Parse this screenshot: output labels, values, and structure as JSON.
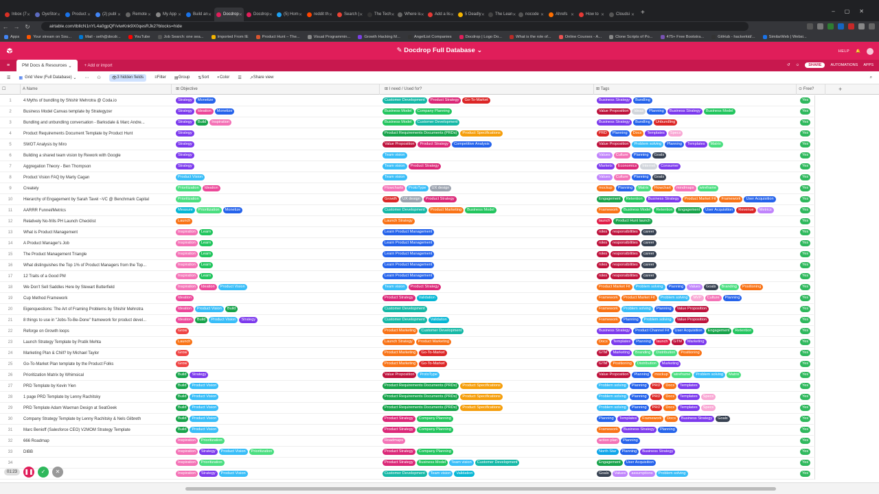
{
  "browser": {
    "tabs": [
      {
        "label": "Inbox (7",
        "color": "#d93025"
      },
      {
        "label": "OyeStor",
        "color": "#5c6bc0"
      },
      {
        "label": "Product",
        "color": "#1a73e8"
      },
      {
        "label": "(2) publ",
        "color": "#4285f4"
      },
      {
        "label": "Remote",
        "color": "#666"
      },
      {
        "label": "My App",
        "color": "#888"
      },
      {
        "label": "Build an",
        "color": "#1a73e8"
      },
      {
        "label": "Docdrop",
        "color": "#e01e5a",
        "active": true
      },
      {
        "label": "Docdrop",
        "color": "#e01e5a"
      },
      {
        "label": "(5) Hom",
        "color": "#1da1f2"
      },
      {
        "label": "reddit th",
        "color": "#ff4500"
      },
      {
        "label": "Search |",
        "color": "#ea4335"
      },
      {
        "label": "The Tech",
        "color": "#333"
      },
      {
        "label": "Where is",
        "color": "#666"
      },
      {
        "label": "Add a lis",
        "color": "#e53935"
      },
      {
        "label": "5 Deadly",
        "color": "#f4b400"
      },
      {
        "label": "The Lean",
        "color": "#444"
      },
      {
        "label": "nocode",
        "color": "#555"
      },
      {
        "label": "Ahrefs",
        "color": "#ff6f00"
      },
      {
        "label": "How to",
        "color": "#e53935"
      },
      {
        "label": "Cloudsi",
        "color": "#555"
      }
    ],
    "url": "airtable.com/tbllcN1nYL4a0gpQF/viwKnk9X0qesRJk2?blocks=hide",
    "bookmarks": [
      {
        "label": "Apps",
        "color": "#4285f4"
      },
      {
        "label": "Your stream on Sou...",
        "color": "#ff5500"
      },
      {
        "label": "Mail - seth@docdr...",
        "color": "#0078d4"
      },
      {
        "label": "YouTube",
        "color": "#ff0000"
      },
      {
        "label": "Job Search: one sea...",
        "color": "#555"
      },
      {
        "label": "Imported From IE",
        "color": "#f4b400"
      },
      {
        "label": "Product Hunt – The...",
        "color": "#da552f"
      },
      {
        "label": "Visual Programmin...",
        "color": "#888"
      },
      {
        "label": "Growth Hacking M...",
        "color": "#7b3fe4"
      },
      {
        "label": "AngelList Companies",
        "color": "#333"
      },
      {
        "label": "Docdrop | Logo Do...",
        "color": "#e01e5a"
      },
      {
        "label": "What is the role of...",
        "color": "#b92b27"
      },
      {
        "label": "Online Courses - A...",
        "color": "#ec5252"
      },
      {
        "label": "Clone Scripts of Po...",
        "color": "#888"
      },
      {
        "label": "475+ Free Bootstra...",
        "color": "#7952b3"
      },
      {
        "label": "GitHub - hackerkid/...",
        "color": "#333"
      },
      {
        "label": "SimilarWeb | Websi...",
        "color": "#1a73e8"
      }
    ]
  },
  "app": {
    "base_title": "Docdrop Full Database",
    "help_label": "HELP",
    "table_tab": "PM Docs & Resources",
    "add_import": "Add or import",
    "share_label": "SHARE",
    "automations_label": "AUTOMATIONS",
    "apps_label": "APPS"
  },
  "viewbar": {
    "view_name": "Grid View (Full Database)",
    "hidden_fields": "3 hidden fields",
    "filter": "Filter",
    "group": "Group",
    "sort": "Sort",
    "color": "Color",
    "share_view": "Share view"
  },
  "columns": {
    "name": "Name",
    "objective": "Objective",
    "need": "I need / Used for?",
    "tags": "Tags",
    "free": "Free?"
  },
  "colors": {
    "Strategy": "#7c3aed",
    "Monetize": "#2563eb",
    "Ideation": "#ec4899",
    "Build": "#16a34a",
    "Inspiration": "#f472b6",
    "Product Vision": "#38bdf8",
    "Prioritization": "#4ade80",
    "Measure": "#06b6d4",
    "Launch": "#f97316",
    "Learn": "#22c55e",
    "Grow": "#ef4444",
    "Roadmap": "#f97316",
    "Customer Development": "#14b8a6",
    "Product Strategy": "#db2777",
    "Go-To-Market": "#dc2626",
    "Business Model": "#22c55e",
    "Company Planning": "#22c55e",
    "Product Requirements Documents (PRDs)": "#16a34a",
    "Product Specifications": "#f59e0b",
    "Value Proposition": "#be123c",
    "Competitive Analysis": "#2563eb",
    "Team vision": "#38bdf8",
    "Flowcharts": "#f472b6",
    "ProtoType": "#38bdf8",
    "UX design": "#9ca3af",
    "Growth": "#dc2626",
    "Product Marketing": "#f97316",
    "Launch Strategy": "#f97316",
    "Learn Product Management": "#2563eb",
    "Validation": "#06b6d4",
    "Roadmaps": "#f472b6",
    "Business Strategy": "#7c3aed",
    "Bundling": "#2563eb",
    "Unbundling": "#dc2626",
    "PRD": "#dc2626",
    "Planning": "#2563eb",
    "Docs": "#f97316",
    "Templates": "#7c3aed",
    "Specs": "#f9a8d4",
    "Problem solving": "#38bdf8",
    "Matrix": "#4ade80",
    "Values": "#c084fc",
    "Culture": "#f472b6",
    "Goals": "#374151",
    "Markets": "#7c3aed",
    "Economics": "#db2777",
    "Internet": "#d1d5db",
    "Consumer": "#7c3aed",
    "mockup": "#f97316",
    "Flowchart": "#f97316",
    "mindmaps": "#f472b6",
    "wireframe": "#4ade80",
    "Engagement": "#16a34a",
    "Retention": "#22c55e",
    "Product Market Fit": "#f97316",
    "Framework": "#f97316",
    "User Acquisition": "#2563eb",
    "Revenue": "#dc2626",
    "Metrics": "#c084fc",
    "launch": "#e11d48",
    "Product Hunt launch": "#16a34a",
    "roles": "#be123c",
    "responsibilities": "#be123c",
    "career": "#374151",
    "Branding": "#4ade80",
    "Positioning": "#f97316",
    "MVP": "#f9a8d4",
    "GTM": "#be123c",
    "Marketing": "#7c3aed",
    "Distribution": "#4ade80",
    "Product Channel Fit": "#2563eb",
    "action plan": "#f472b6",
    "North Star": "#0ea5e9",
    "Ideas": "#d1d5db",
    "assumptions": "#c084fc",
    "Yes": "#2eb85c"
  },
  "records": [
    {
      "n": "1",
      "name": "4 Myths of bundling by Shishir Mehrotra @ Coda.io",
      "obj": [
        "Strategy",
        "Monetize"
      ],
      "need": [
        "Customer Development",
        "Product Strategy",
        "Go-To-Market"
      ],
      "tags": [
        "Business Strategy",
        "Bundling"
      ],
      "free": "Yes"
    },
    {
      "n": "2",
      "name": "Business Model Canvas template by Strategyzer",
      "obj": [
        "Strategy",
        "Ideation",
        "Monetize"
      ],
      "need": [
        "Business Model",
        "Company Planning"
      ],
      "tags": [
        "Value Proposition",
        "Ideas",
        "Planning",
        "Business Strategy",
        "Business Model"
      ],
      "free": "Yes"
    },
    {
      "n": "3",
      "name": "Bundling and unbundling conversation - Barksdale & Marc Andre...",
      "obj": [
        "Strategy",
        "Build",
        "Inspiration"
      ],
      "need": [
        "Business Model",
        "Customer Development"
      ],
      "tags": [
        "Business Strategy",
        "Bundling",
        "Unbundling"
      ],
      "free": "Yes"
    },
    {
      "n": "4",
      "name": "Product Requirements Document Template by Product Hunt",
      "obj": [
        "Strategy"
      ],
      "need": [
        "Product Requirements Documents (PRDs)",
        "Product Specifications"
      ],
      "tags": [
        "PRD",
        "Planning",
        "Docs",
        "Templates",
        "Specs"
      ],
      "free": "Yes"
    },
    {
      "n": "5",
      "name": "SWOT Analysis by Miro",
      "obj": [
        "Strategy"
      ],
      "need": [
        "Value Proposition",
        "Product Strategy",
        "Competitive Analysis"
      ],
      "tags": [
        "Value Proposition",
        "Problem solving",
        "Planning",
        "Templates",
        "Matrix"
      ],
      "free": "Yes"
    },
    {
      "n": "6",
      "name": "Building a shared team vision by Rework with Google",
      "obj": [
        "Strategy"
      ],
      "need": [
        "Team vision"
      ],
      "tags": [
        "Values",
        "Culture",
        "Planning",
        "Goals"
      ],
      "free": "Yes"
    },
    {
      "n": "7",
      "name": "Aggregation Theory - Ben Thompson",
      "obj": [
        "Strategy"
      ],
      "need": [
        "Team vision",
        "Product Strategy"
      ],
      "tags": [
        "Markets",
        "Economics",
        "Internet",
        "Consumer"
      ],
      "free": "Yes"
    },
    {
      "n": "8",
      "name": "Product Vision FAQ by Marty Cagan",
      "obj": [
        "Product Vision"
      ],
      "need": [
        "Team vision"
      ],
      "tags": [
        "Values",
        "Culture",
        "Planning",
        "Goals"
      ],
      "free": "Yes"
    },
    {
      "n": "9",
      "name": "Creately",
      "obj": [
        "Prioritization",
        "Ideation"
      ],
      "need": [
        "Flowcharts",
        "ProtoType",
        "UX design"
      ],
      "tags": [
        "mockup",
        "Planning",
        "Matrix",
        "Flowchart",
        "mindmaps",
        "wireframe"
      ],
      "free": "Yes"
    },
    {
      "n": "10",
      "name": "Hierarchy of Engagement by Sarah Tavel ~VC @ Benchmark Capital",
      "obj": [
        "Prioritization"
      ],
      "need": [
        "Growth",
        "UX design",
        "Product Strategy"
      ],
      "tags": [
        "Engagement",
        "Retention",
        "Business Strategy",
        "Product Market Fit",
        "Framework",
        "User Acquisition"
      ],
      "free": "Yes"
    },
    {
      "n": "11",
      "name": "AARRR Funnel/Metrics",
      "obj": [
        "Measure",
        "Prioritization",
        "Monetize"
      ],
      "need": [
        "Customer Development",
        "Product Marketing",
        "Business Model"
      ],
      "tags": [
        "Framework",
        "Business Model",
        "Retention",
        "Engagement",
        "User Acquisition",
        "Revenue",
        "Metrics"
      ],
      "free": "Yes"
    },
    {
      "n": "12",
      "name": "Relatively No-frills PH Launch Checklist",
      "obj": [
        "Launch"
      ],
      "need": [
        "Launch Strategy"
      ],
      "tags": [
        "launch",
        "Product Hunt launch"
      ],
      "free": "Yes"
    },
    {
      "n": "13",
      "name": "What is Product Management",
      "obj": [
        "Inspiration",
        "Learn"
      ],
      "need": [
        "Learn Product Management"
      ],
      "tags": [
        "roles",
        "responsibilities",
        "career"
      ],
      "free": "Yes"
    },
    {
      "n": "14",
      "name": "A Product Manager's Job",
      "obj": [
        "Inspiration",
        "Learn"
      ],
      "need": [
        "Learn Product Management"
      ],
      "tags": [
        "roles",
        "responsibilities",
        "career"
      ],
      "free": "Yes"
    },
    {
      "n": "15",
      "name": "The Product Management Triangle",
      "obj": [
        "Inspiration",
        "Learn"
      ],
      "need": [
        "Learn Product Management"
      ],
      "tags": [
        "roles",
        "responsibilities",
        "career"
      ],
      "free": "Yes"
    },
    {
      "n": "16",
      "name": "What distinguishes the Top 1% of Product Managers from the Top...",
      "obj": [
        "Inspiration",
        "Learn"
      ],
      "need": [
        "Learn Product Management"
      ],
      "tags": [
        "roles",
        "responsibilities",
        "career"
      ],
      "free": "Yes"
    },
    {
      "n": "17",
      "name": "12 Traits of a Good PM",
      "obj": [
        "Inspiration",
        "Learn"
      ],
      "need": [
        "Learn Product Management"
      ],
      "tags": [
        "roles",
        "responsibilities",
        "career"
      ],
      "free": "Yes"
    },
    {
      "n": "18",
      "name": "We Don't Sell Saddles Here by Stewart Butterfield",
      "obj": [
        "Inspiration",
        "Ideation",
        "Product Vision"
      ],
      "need": [
        "Team vision",
        "Product Strategy"
      ],
      "tags": [
        "Product Market Fit",
        "Problem solving",
        "Planning",
        "Values",
        "Goals",
        "Branding",
        "Positioning"
      ],
      "free": "Yes"
    },
    {
      "n": "19",
      "name": "Cup Method Framework",
      "obj": [
        "Ideation"
      ],
      "need": [
        "Product Strategy",
        "Validation"
      ],
      "tags": [
        "Framework",
        "Product Market Fit",
        "Problem solving",
        "MVP",
        "Culture",
        "Planning"
      ],
      "free": "Yes"
    },
    {
      "n": "20",
      "name": "Eigenquestions: The Art of Framing Problems by Shishir Mehrotra",
      "obj": [
        "Ideation",
        "Product Vision",
        "Build"
      ],
      "need": [
        "Customer Development"
      ],
      "tags": [
        "Framework",
        "Problem solving",
        "Planning",
        "Value Proposition"
      ],
      "free": "Yes"
    },
    {
      "n": "21",
      "name": "8 things to use in \"Jobs-To-Be-Done\" framework for product devel...",
      "obj": [
        "Ideation",
        "Build",
        "Product Vision",
        "Strategy"
      ],
      "need": [
        "Customer Development",
        "Validation"
      ],
      "tags": [
        "Framework",
        "Planning",
        "Problem solving",
        "Value Proposition"
      ],
      "free": "Yes"
    },
    {
      "n": "22",
      "name": "Reforge on Growth loops",
      "obj": [
        "Grow"
      ],
      "need": [
        "Product Marketing",
        "Customer Development"
      ],
      "tags": [
        "Business Strategy",
        "Product Channel Fit",
        "User Acquisition",
        "Engagement",
        "Retention"
      ],
      "free": "Yes"
    },
    {
      "n": "23",
      "name": "Launch Strategy Template by Pratik Mehta",
      "obj": [
        "Launch"
      ],
      "need": [
        "Launch Strategy",
        "Product Marketing"
      ],
      "tags": [
        "Docs",
        "Templates",
        "Planning",
        "launch",
        "GTM",
        "Marketing"
      ],
      "free": "Yes"
    },
    {
      "n": "24",
      "name": "Marketing Plan & Chill? by Michael Taylor",
      "obj": [
        "Grow"
      ],
      "need": [
        "Product Marketing",
        "Go-To-Market"
      ],
      "tags": [
        "GTM",
        "Marketing",
        "Branding",
        "Distribution",
        "Positioning"
      ],
      "free": "Yes"
    },
    {
      "n": "25",
      "name": "Go-To-Market Plan template by the Product Folks",
      "obj": [
        "Grow"
      ],
      "need": [
        "Product Marketing",
        "Go-To-Market"
      ],
      "tags": [
        "GTM",
        "Positioning",
        "Distribution",
        "Marketing"
      ],
      "free": "Yes"
    },
    {
      "n": "26",
      "name": "Prioritization Matrix by Whimsical",
      "obj": [
        "Build",
        "Strategy"
      ],
      "need": [
        "Value Proposition",
        "ProtoType"
      ],
      "tags": [
        "Value Proposition",
        "Planning",
        "mockup",
        "wireframe",
        "Problem solving",
        "Matrix"
      ],
      "free": "Yes"
    },
    {
      "n": "27",
      "name": "PRD Template by Kevin Yien",
      "obj": [
        "Build",
        "Product Vision"
      ],
      "need": [
        "Product Requirements Documents (PRDs)",
        "Product Specifications"
      ],
      "tags": [
        "Problem solving",
        "Planning",
        "PRD",
        "Docs",
        "Templates"
      ],
      "free": "Yes"
    },
    {
      "n": "28",
      "name": "1 page PRD Template by Lenny Rachitsky",
      "obj": [
        "Build",
        "Product Vision"
      ],
      "need": [
        "Product Requirements Documents (PRDs)",
        "Product Specifications"
      ],
      "tags": [
        "Problem solving",
        "Planning",
        "PRD",
        "Docs",
        "Templates",
        "Specs"
      ],
      "free": "Yes"
    },
    {
      "n": "29",
      "name": "PRD Template Adam Waxman Design at SeatGeek",
      "obj": [
        "Build",
        "Product Vision"
      ],
      "need": [
        "Product Requirements Documents (PRDs)",
        "Product Specifications"
      ],
      "tags": [
        "Problem solving",
        "Planning",
        "PRD",
        "Docs",
        "Templates",
        "Specs"
      ],
      "free": "Yes"
    },
    {
      "n": "30",
      "name": "Company Strategy Template by Lenny Rachitsky & Nels Gilbreth",
      "obj": [
        "Build",
        "Product Vision"
      ],
      "need": [
        "Product Strategy",
        "Company Planning"
      ],
      "tags": [
        "Planning",
        "Templates",
        "Framework",
        "Docs",
        "Business Strategy",
        "Goals"
      ],
      "free": "Yes"
    },
    {
      "n": "31",
      "name": "Marc Benioff (Salesforce CEO) V2MOM Strategy Template",
      "obj": [
        "Build",
        "Product Vision"
      ],
      "need": [
        "Product Strategy",
        "Company Planning"
      ],
      "tags": [
        "Framework",
        "Business Strategy",
        "Planning"
      ],
      "free": "Yes"
    },
    {
      "n": "32",
      "name": "666 Roadmap",
      "obj": [
        "Inspiration",
        "Prioritization"
      ],
      "need": [
        "Roadmaps"
      ],
      "tags": [
        "action plan",
        "Planning"
      ],
      "free": "Yes"
    },
    {
      "n": "33",
      "name": "DIBB",
      "obj": [
        "Inspiration",
        "Strategy",
        "Product Vision",
        "Prioritization"
      ],
      "need": [
        "Product Strategy",
        "Company Planning"
      ],
      "tags": [
        "North Star",
        "Planning",
        "Business Strategy"
      ],
      "free": "Yes"
    },
    {
      "n": "34",
      "name": "",
      "obj": [
        "Inspiration",
        "Prioritization"
      ],
      "need": [
        "Product Strategy",
        "Business Model",
        "Team vision",
        "Customer Development"
      ],
      "tags": [
        "Engagement",
        "User Acquisition"
      ],
      "free": "Yes"
    },
    {
      "n": "35",
      "name": "",
      "obj": [
        "Inspiration",
        "Strategy",
        "Product Vision"
      ],
      "need": [
        "Customer Development",
        "Team vision",
        "Validation"
      ],
      "tags": [
        "Goals",
        "Values",
        "assumptions",
        "Problem solving"
      ],
      "free": "Yes"
    }
  ],
  "recorder": {
    "time": "01:23"
  }
}
